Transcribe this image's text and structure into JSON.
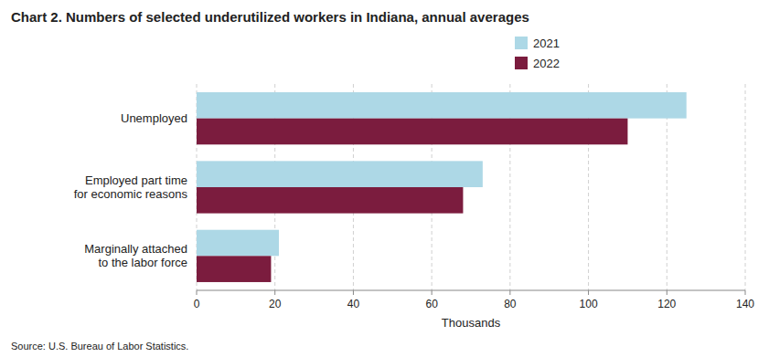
{
  "chart_data": {
    "type": "bar",
    "orientation": "horizontal",
    "title": "Chart 2. Numbers of selected underutilized workers in Indiana, annual averages",
    "categories": [
      "Unemployed",
      "Employed part time\nfor economic reasons",
      "Marginally attached\nto the labor force"
    ],
    "series": [
      {
        "name": "2021",
        "color": "#add8e6",
        "values": [
          125,
          73,
          21
        ]
      },
      {
        "name": "2022",
        "color": "#7b1c3e",
        "values": [
          110,
          68,
          19
        ]
      }
    ],
    "x_label": "Thousands",
    "xlim": [
      0,
      140
    ],
    "xticks": [
      0,
      20,
      40,
      60,
      80,
      100,
      120,
      140
    ],
    "grid": true,
    "legend": "top",
    "annotations": [
      "Source: U.S. Bureau of Labor Statistics."
    ]
  }
}
